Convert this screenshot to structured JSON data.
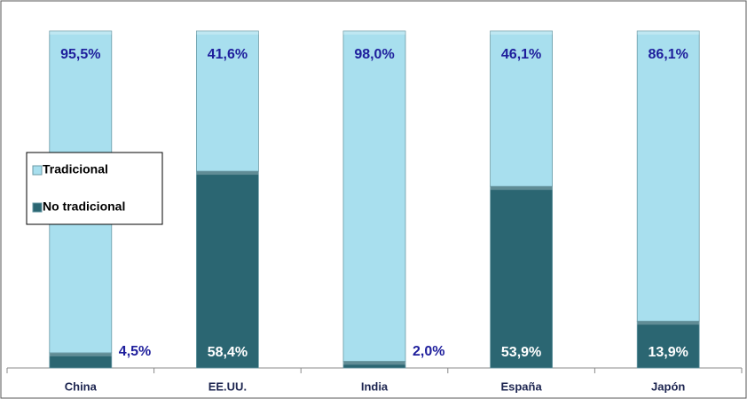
{
  "chart_data": {
    "type": "stacked_bar",
    "categories": [
      "China",
      "EE.UU.",
      "India",
      "España",
      "Japón"
    ],
    "series": [
      {
        "name": "No tradicional",
        "color": "#2b6672",
        "values": [
          4.5,
          58.4,
          2.0,
          53.9,
          13.9
        ],
        "value_labels": [
          "4,5%",
          "58,4%",
          "2,0%",
          "53,9%",
          "13,9%"
        ]
      },
      {
        "name": "Tradicional",
        "color": "#a8dfee",
        "values": [
          95.5,
          41.6,
          98.0,
          46.1,
          86.1
        ],
        "value_labels": [
          "95,5%",
          "41,6%",
          "98,0%",
          "46,1%",
          "86,1%"
        ]
      }
    ]
  }
}
